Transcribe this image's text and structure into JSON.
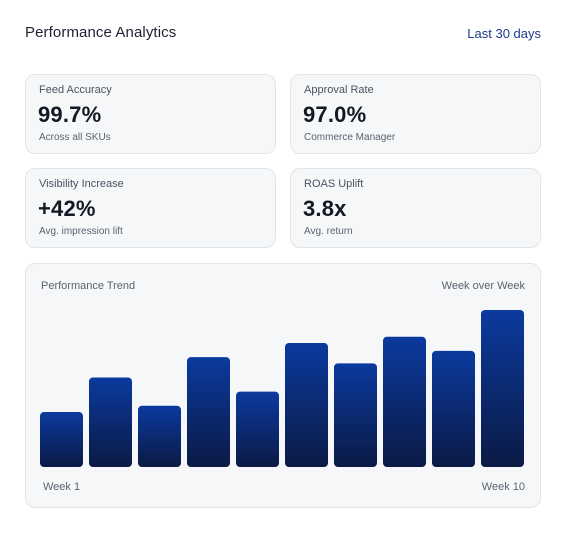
{
  "header": {
    "title": "Performance Analytics",
    "range_label": "Last 30 days"
  },
  "metrics": [
    {
      "label": "Feed Accuracy",
      "value": "99.7%",
      "sub": "Across all SKUs"
    },
    {
      "label": "Approval Rate",
      "value": "97.0%",
      "sub": "Commerce Manager"
    },
    {
      "label": "Visibility Increase",
      "value": "+42%",
      "sub": "Avg. impression lift"
    },
    {
      "label": "ROAS Uplift",
      "value": "3.8x",
      "sub": "Avg. return"
    }
  ],
  "chart": {
    "title": "Performance Trend",
    "period": "Week over Week",
    "x_start_label": "Week 1",
    "x_end_label": "Week 10"
  },
  "chart_data": {
    "type": "bar",
    "title": "Performance Trend",
    "categories": [
      "Week 1",
      "Week 2",
      "Week 3",
      "Week 4",
      "Week 5",
      "Week 6",
      "Week 7",
      "Week 8",
      "Week 9",
      "Week 10"
    ],
    "values": [
      35,
      57,
      39,
      70,
      48,
      79,
      66,
      83,
      74,
      100
    ],
    "ylim": [
      0,
      100
    ],
    "grid": false,
    "legend": "none",
    "colors": {
      "bar_top": "#0b3a9e",
      "bar_bottom": "#0b1a45"
    }
  }
}
